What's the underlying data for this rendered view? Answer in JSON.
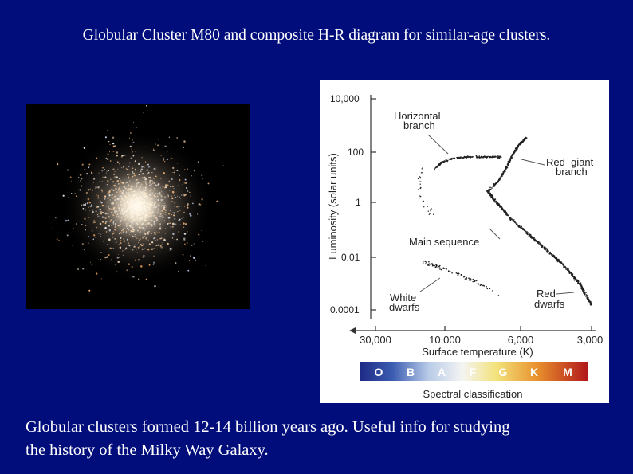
{
  "slide": {
    "title": "Globular Cluster M80 and composite H-R diagram for similar-age clusters.",
    "caption_line1": "Globular clusters formed 12-14 billion years ago.  Useful info for studying",
    "caption_line2": "the history of the Milky Way Galaxy.",
    "background_color": "#000d7a"
  },
  "photo": {
    "subject": "Globular Cluster M80"
  },
  "diagram": {
    "y_axis_label": "Luminosity (solar units)",
    "y_ticks": [
      "10,000",
      "100",
      "1",
      "0.01",
      "0.0001"
    ],
    "x_axis_label": "Surface temperature (K)",
    "x_ticks": [
      "30,000",
      "10,000",
      "6,000",
      "3,000"
    ],
    "labels": {
      "horizontal_branch_1": "Horizontal",
      "horizontal_branch_2": "branch",
      "red_giant_branch_1": "Red–giant",
      "red_giant_branch_2": "branch",
      "main_sequence": "Main sequence",
      "white_dwarfs_1": "White",
      "white_dwarfs_2": "dwarfs",
      "red_dwarfs_1": "Red",
      "red_dwarfs_2": "dwarfs"
    },
    "spectral_classes": [
      "O",
      "B",
      "A",
      "F",
      "G",
      "K",
      "M"
    ],
    "spectral_label": "Spectral classification"
  }
}
